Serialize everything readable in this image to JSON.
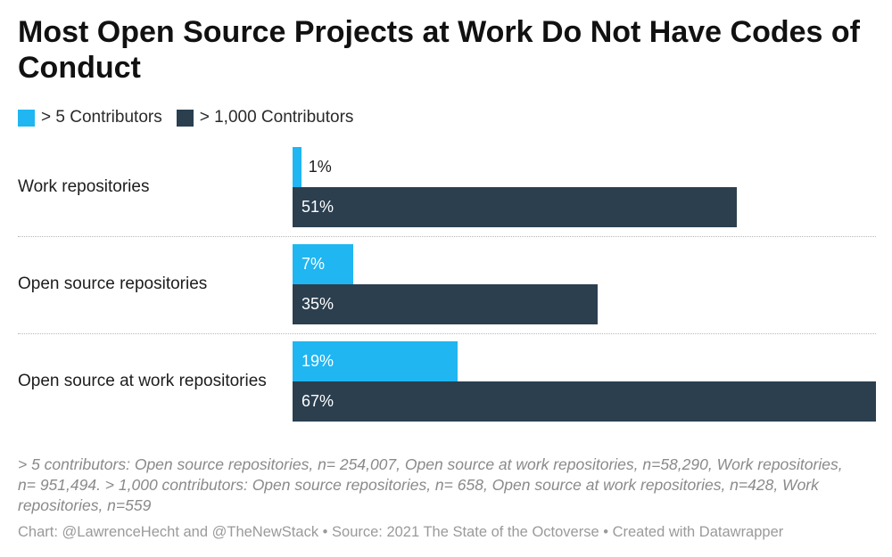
{
  "title": "Most Open Source Projects at Work Do Not Have Codes of Conduct",
  "legend": [
    {
      "label": "> 5 Contributors",
      "color": "#1fb6f2"
    },
    {
      "label": "> 1,000 Contributors",
      "color": "#2b3f4f"
    }
  ],
  "chart_data": {
    "type": "bar",
    "orientation": "horizontal",
    "categories": [
      "Work repositories",
      "Open source repositories",
      "Open source at work repositories"
    ],
    "series": [
      {
        "name": "> 5 Contributors",
        "values": [
          1,
          7,
          19
        ],
        "labels": [
          "1%",
          "7%",
          "19%"
        ],
        "color": "#1fb6f2"
      },
      {
        "name": "> 1,000 Contributors",
        "values": [
          51,
          35,
          67
        ],
        "labels": [
          "51%",
          "35%",
          "67%"
        ],
        "color": "#2b3f4f"
      }
    ],
    "xlim": [
      0,
      67
    ],
    "grid": false,
    "legend_position": "top-left"
  },
  "note": "> 5 contributors: Open source repositories, n= 254,007, Open source at work repositories, n=58,290, Work repositories, n= 951,494. > 1,000 contributors: Open source repositories, n= 658, Open source at work repositories, n=428, Work repositories, n=559",
  "footer": "Chart: @LawrenceHecht and @TheNewStack • Source: 2021 The State of the Octoverse • Created with Datawrapper"
}
